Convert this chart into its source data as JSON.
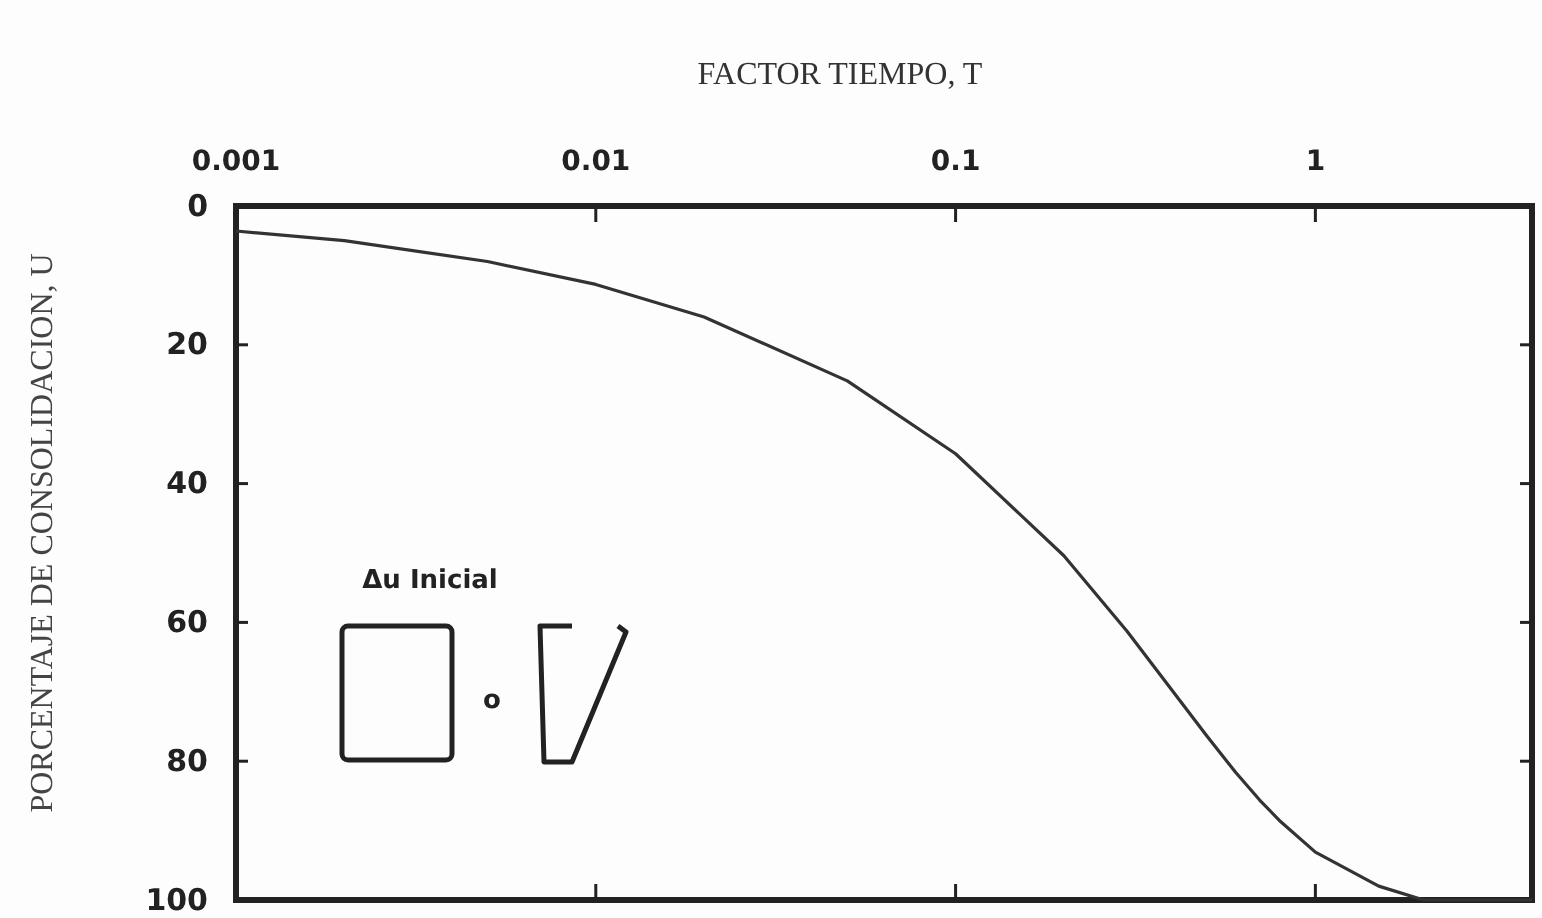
{
  "chart_data": {
    "type": "line",
    "xlabel": "FACTOR TIEMPO, T",
    "ylabel": "PORCENTAJE DE CONSOLIDACION, U",
    "x": [
      0.001,
      0.002,
      0.005,
      0.01,
      0.02,
      0.05,
      0.1,
      0.2,
      0.3,
      0.4,
      0.5,
      0.6,
      0.7,
      0.8,
      1,
      1.5,
      2,
      4
    ],
    "series": [
      {
        "color": "#333333",
        "values": [
          3.6,
          5,
          8,
          11.3,
          16,
          25.2,
          35.7,
          50.4,
          61.3,
          69.8,
          76.4,
          81.6,
          85.6,
          88.7,
          93.1,
          98,
          100,
          100
        ]
      }
    ],
    "log": "x",
    "xlim": [
      0.001,
      4
    ],
    "xticks": [
      0.001,
      0.01,
      0.1,
      1
    ],
    "ylim": [
      100,
      0
    ],
    "yticks": [
      0,
      20,
      40,
      60,
      80,
      100
    ],
    "grid": false,
    "marker": "none",
    "line_style": "solid",
    "annotations": [
      "Δu Inicial",
      "o"
    ]
  }
}
